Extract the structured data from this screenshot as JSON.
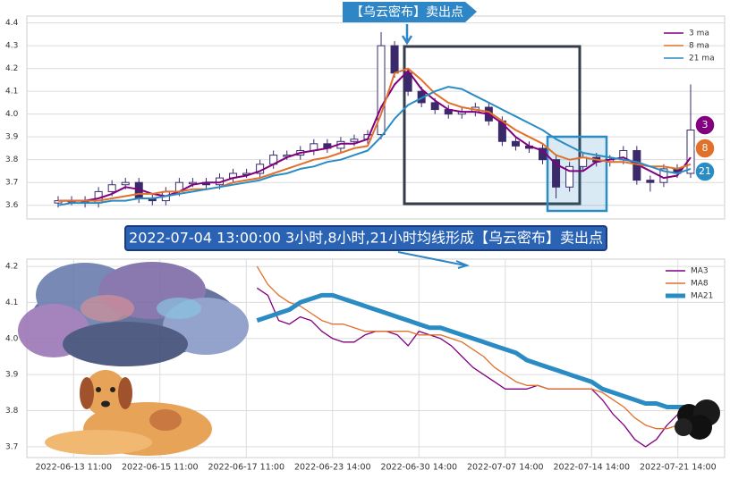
{
  "banner": "2022-07-04 13:00:00 3小时,8小时,21小时均线形成【乌云密布】卖出点",
  "chart_data": [
    {
      "type": "candlestick",
      "annotation": "【乌云密布】卖出点",
      "candle_color": "#3b2a6b",
      "ylim": [
        3.54,
        4.43
      ],
      "yticks": [
        3.6,
        3.7,
        3.8,
        3.9,
        {
          "value": 4,
          "label": "4.0"
        },
        4.1,
        4.2,
        4.3,
        4.4
      ],
      "grid": true,
      "legend": "upper right",
      "open": [
        3.61,
        3.62,
        3.62,
        3.61,
        3.66,
        3.69,
        3.7,
        3.63,
        3.62,
        3.66,
        3.7,
        3.7,
        3.69,
        3.72,
        3.74,
        3.74,
        3.78,
        3.82,
        3.82,
        3.84,
        3.87,
        3.85,
        3.88,
        3.89,
        3.91,
        4.3,
        4.18,
        4.1,
        4.05,
        4.02,
        4.0,
        4.01,
        4.03,
        3.97,
        3.88,
        3.86,
        3.85,
        3.8,
        3.68,
        3.77,
        3.81,
        3.79,
        3.8,
        3.84,
        3.71,
        3.7,
        3.76,
        3.74
      ],
      "high": [
        3.64,
        3.64,
        3.64,
        3.68,
        3.71,
        3.72,
        3.72,
        3.65,
        3.68,
        3.72,
        3.72,
        3.72,
        3.74,
        3.76,
        3.76,
        3.8,
        3.84,
        3.84,
        3.86,
        3.89,
        3.89,
        3.9,
        3.91,
        3.93,
        4.36,
        4.32,
        4.2,
        4.12,
        4.07,
        4.04,
        4.03,
        4.05,
        4.05,
        3.99,
        3.9,
        3.88,
        3.87,
        3.82,
        3.79,
        3.83,
        3.83,
        3.82,
        3.86,
        3.86,
        3.73,
        3.78,
        3.78,
        4.13
      ],
      "low": [
        3.59,
        3.6,
        3.59,
        3.59,
        3.64,
        3.67,
        3.61,
        3.6,
        3.6,
        3.64,
        3.68,
        3.67,
        3.67,
        3.7,
        3.72,
        3.72,
        3.76,
        3.8,
        3.8,
        3.82,
        3.83,
        3.83,
        3.86,
        3.87,
        3.89,
        4.16,
        4.08,
        4.03,
        4.0,
        3.98,
        3.98,
        3.99,
        3.95,
        3.86,
        3.84,
        3.83,
        3.78,
        3.63,
        3.66,
        3.75,
        3.77,
        3.77,
        3.78,
        3.69,
        3.66,
        3.68,
        3.72,
        3.72
      ],
      "close": [
        3.62,
        3.62,
        3.61,
        3.66,
        3.69,
        3.7,
        3.63,
        3.62,
        3.66,
        3.7,
        3.7,
        3.69,
        3.72,
        3.74,
        3.74,
        3.78,
        3.82,
        3.82,
        3.84,
        3.87,
        3.85,
        3.88,
        3.89,
        3.91,
        4.3,
        4.18,
        4.1,
        4.05,
        4.02,
        4.0,
        4.01,
        4.03,
        3.97,
        3.88,
        3.86,
        3.85,
        3.8,
        3.68,
        3.77,
        3.81,
        3.79,
        3.8,
        3.84,
        3.71,
        3.7,
        3.76,
        3.74,
        3.93
      ],
      "series": [
        {
          "name": "3 ma",
          "label": "3",
          "color": "#800080",
          "values": [
            3.62,
            3.62,
            3.62,
            3.63,
            3.65,
            3.68,
            3.67,
            3.65,
            3.64,
            3.66,
            3.69,
            3.7,
            3.7,
            3.72,
            3.73,
            3.75,
            3.78,
            3.81,
            3.83,
            3.84,
            3.85,
            3.87,
            3.87,
            3.89,
            4.03,
            4.13,
            4.19,
            4.11,
            4.06,
            4.02,
            4.01,
            4.01,
            4.0,
            3.96,
            3.9,
            3.86,
            3.84,
            3.78,
            3.75,
            3.75,
            3.79,
            3.8,
            3.81,
            3.78,
            3.75,
            3.72,
            3.73,
            3.81
          ]
        },
        {
          "name": "8 ma",
          "label": "8",
          "color": "#e0702a",
          "values": [
            3.62,
            3.62,
            3.62,
            3.62,
            3.63,
            3.64,
            3.65,
            3.65,
            3.66,
            3.66,
            3.67,
            3.67,
            3.68,
            3.7,
            3.71,
            3.72,
            3.74,
            3.76,
            3.78,
            3.8,
            3.81,
            3.83,
            3.85,
            3.86,
            4.0,
            4.18,
            4.2,
            4.15,
            4.09,
            4.05,
            4.03,
            4.02,
            4.01,
            3.97,
            3.93,
            3.9,
            3.87,
            3.82,
            3.8,
            3.81,
            3.8,
            3.79,
            3.79,
            3.78,
            3.77,
            3.77,
            3.76,
            3.78
          ]
        },
        {
          "name": "21 ma",
          "label": "21",
          "color": "#2b8cc4",
          "values": [
            3.6,
            3.61,
            3.61,
            3.61,
            3.62,
            3.62,
            3.63,
            3.63,
            3.64,
            3.65,
            3.66,
            3.67,
            3.68,
            3.69,
            3.7,
            3.71,
            3.73,
            3.74,
            3.76,
            3.77,
            3.79,
            3.8,
            3.82,
            3.84,
            3.9,
            3.98,
            4.04,
            4.07,
            4.1,
            4.12,
            4.11,
            4.08,
            4.05,
            4.02,
            3.99,
            3.96,
            3.93,
            3.89,
            3.86,
            3.83,
            3.82,
            3.81,
            3.8,
            3.79,
            3.77,
            3.75,
            3.74,
            3.76
          ]
        }
      ]
    },
    {
      "type": "line",
      "ylim": [
        3.67,
        4.22
      ],
      "yticks": [
        4.2,
        4.1,
        {
          "value": 4,
          "label": "4.0"
        },
        3.9,
        3.8,
        3.7
      ],
      "grid": true,
      "legend": "upper right",
      "categories": [
        null,
        null,
        null,
        null,
        "2022-06-13 11:00",
        null,
        null,
        null,
        null,
        null,
        null,
        null,
        "2022-06-15 11:00",
        null,
        null,
        null,
        null,
        null,
        null,
        null,
        "2022-06-17 11:00",
        null,
        null,
        null,
        null,
        null,
        null,
        null,
        "2022-06-23 14:00",
        null,
        null,
        null,
        null,
        null,
        null,
        null,
        "2022-06-30 14:00",
        null,
        null,
        null,
        null,
        null,
        null,
        null,
        "2022-07-07 14:00",
        null,
        null,
        null,
        null,
        null,
        null,
        null,
        "2022-07-14 14:00",
        null,
        null,
        null,
        null,
        null,
        null,
        null,
        "2022-07-21 14:00",
        null,
        null,
        null
      ],
      "series": [
        {
          "name": "MA3",
          "color": "#800080",
          "width": 1.3,
          "values": [
            null,
            null,
            null,
            null,
            null,
            null,
            null,
            null,
            null,
            null,
            null,
            null,
            null,
            null,
            null,
            null,
            null,
            null,
            null,
            null,
            null,
            4.14,
            4.12,
            4.05,
            4.04,
            4.06,
            4.05,
            4.02,
            4.0,
            3.99,
            3.99,
            4.01,
            4.02,
            4.02,
            4.01,
            3.98,
            4.02,
            4.01,
            4.0,
            3.98,
            3.95,
            3.92,
            3.9,
            3.88,
            3.86,
            3.86,
            3.86,
            3.87,
            3.86,
            3.86,
            3.86,
            3.86,
            3.86,
            3.83,
            3.79,
            3.76,
            3.72,
            3.7,
            3.72,
            3.76,
            3.79,
            3.81,
            null,
            null
          ]
        },
        {
          "name": "MA8",
          "color": "#e0702a",
          "width": 1.3,
          "values": [
            null,
            null,
            null,
            null,
            null,
            null,
            null,
            null,
            null,
            null,
            null,
            null,
            null,
            null,
            null,
            null,
            null,
            null,
            null,
            null,
            null,
            4.2,
            4.15,
            4.12,
            4.1,
            4.09,
            4.07,
            4.05,
            4.04,
            4.04,
            4.03,
            4.02,
            4.02,
            4.02,
            4.02,
            4.02,
            4.01,
            4.01,
            4.01,
            4.0,
            3.99,
            3.97,
            3.95,
            3.92,
            3.9,
            3.88,
            3.87,
            3.87,
            3.86,
            3.86,
            3.86,
            3.86,
            3.86,
            3.85,
            3.83,
            3.81,
            3.78,
            3.76,
            3.75,
            3.75,
            3.76,
            3.77,
            null,
            null
          ]
        },
        {
          "name": "MA21",
          "color": "#2b8cc4",
          "width": 5,
          "values": [
            null,
            null,
            null,
            null,
            null,
            null,
            null,
            null,
            null,
            null,
            null,
            null,
            null,
            null,
            null,
            null,
            null,
            null,
            null,
            null,
            null,
            4.05,
            4.06,
            4.07,
            4.08,
            4.1,
            4.11,
            4.12,
            4.12,
            4.11,
            4.1,
            4.09,
            4.08,
            4.07,
            4.06,
            4.05,
            4.04,
            4.03,
            4.03,
            4.02,
            4.01,
            4.0,
            3.99,
            3.98,
            3.97,
            3.96,
            3.94,
            3.93,
            3.92,
            3.91,
            3.9,
            3.89,
            3.88,
            3.86,
            3.85,
            3.84,
            3.83,
            3.82,
            3.82,
            3.81,
            3.81,
            3.81,
            null,
            null
          ]
        }
      ]
    }
  ]
}
